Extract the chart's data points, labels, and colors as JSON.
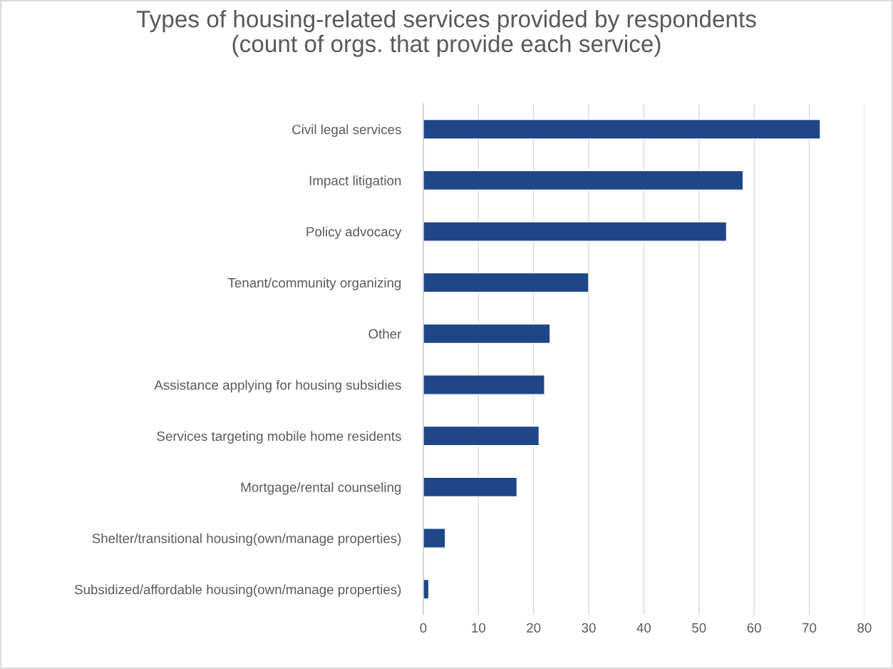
{
  "chart_data": {
    "type": "bar",
    "orientation": "horizontal",
    "title": "Types of housing-related services provided by respondents\n(count of orgs. that provide each service)",
    "categories": [
      "Civil legal services",
      "Impact litigation",
      "Policy advocacy",
      "Tenant/community organizing",
      "Other",
      "Assistance applying for housing subsidies",
      "Services targeting mobile home residents",
      "Mortgage/rental counseling",
      "Shelter/transitional housing(own/manage properties)",
      "Subsidized/affordable housing(own/manage properties)"
    ],
    "values": [
      72,
      58,
      55,
      30,
      23,
      22,
      21,
      17,
      4,
      1
    ],
    "color": "#1f4688",
    "xlim": [
      0,
      80
    ],
    "xticks": [
      0,
      10,
      20,
      30,
      40,
      50,
      60,
      70,
      80
    ],
    "grid": "x",
    "legend": false
  }
}
